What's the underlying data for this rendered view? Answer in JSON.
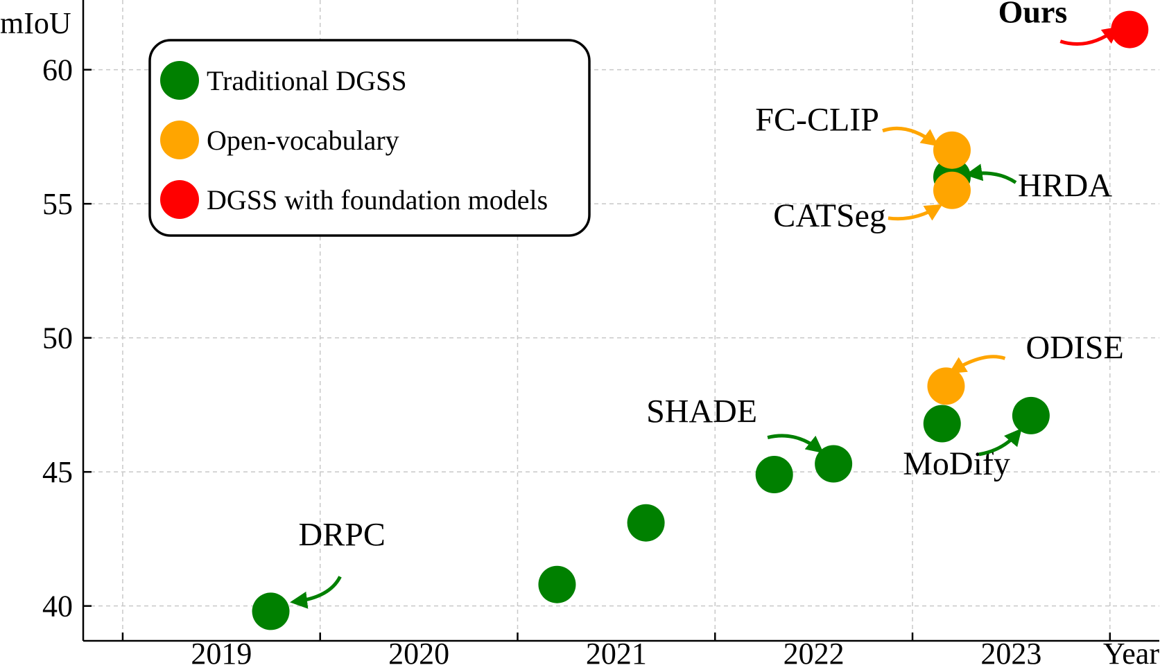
{
  "chart_data": {
    "type": "scatter",
    "xlabel": "Year",
    "ylabel": "mIoU",
    "x_ticks": [
      "2019",
      "2020",
      "2021",
      "2022",
      "2023"
    ],
    "y_ticks": [
      40,
      45,
      50,
      55,
      60
    ],
    "xlim": [
      2018.3,
      2023.75
    ],
    "ylim": [
      38.7,
      62.6
    ],
    "grid": true,
    "legend_position": "top-left",
    "series": [
      {
        "name": "Traditional DGSS",
        "color": "#008000",
        "points": [
          {
            "x": 2019.25,
            "y": 39.8,
            "label": "DRPC"
          },
          {
            "x": 2020.7,
            "y": 40.8
          },
          {
            "x": 2021.15,
            "y": 43.1
          },
          {
            "x": 2021.8,
            "y": 44.9
          },
          {
            "x": 2022.1,
            "y": 45.3,
            "label": "SHADE"
          },
          {
            "x": 2022.65,
            "y": 46.8
          },
          {
            "x": 2023.1,
            "y": 47.1,
            "label": "MoDify"
          },
          {
            "x": 2022.7,
            "y": 56.0,
            "label": "HRDA"
          }
        ]
      },
      {
        "name": "Open-vocabulary",
        "color": "#ffa500",
        "points": [
          {
            "x": 2022.7,
            "y": 57.0,
            "label": "FC-CLIP"
          },
          {
            "x": 2022.7,
            "y": 55.5,
            "label": "CATSeg"
          },
          {
            "x": 2022.67,
            "y": 48.2,
            "label": "ODISE"
          }
        ]
      },
      {
        "name": "DGSS with foundation models",
        "color": "#ff0000",
        "points": [
          {
            "x": 2023.6,
            "y": 61.5,
            "label": "Ours"
          }
        ]
      }
    ]
  }
}
